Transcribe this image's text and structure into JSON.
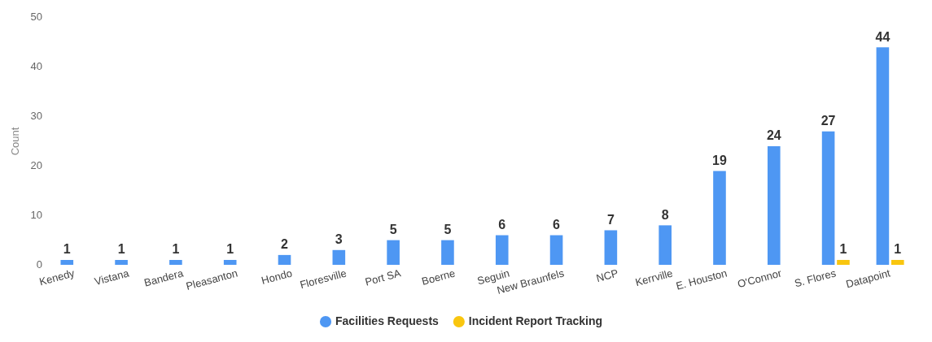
{
  "chart_data": {
    "type": "bar",
    "ylabel": "Count",
    "categories": [
      "Kenedy",
      "Vistana",
      "Bandera",
      "Pleasanton",
      "Hondo",
      "Floresville",
      "Port SA",
      "Boerne",
      "Seguin",
      "New Braunfels",
      "NCP",
      "Kerrville",
      "E. Houston",
      "O'Connor",
      "S. Flores",
      "Datapoint"
    ],
    "series": [
      {
        "name": "Facilities Requests",
        "color": "#4e97f3",
        "values": [
          1,
          1,
          1,
          1,
          2,
          3,
          5,
          5,
          6,
          6,
          7,
          8,
          19,
          24,
          27,
          44
        ]
      },
      {
        "name": "Incident Report Tracking",
        "color": "#f9c60f",
        "values": [
          null,
          null,
          null,
          null,
          null,
          null,
          null,
          null,
          null,
          null,
          null,
          null,
          null,
          null,
          1,
          1
        ]
      }
    ],
    "ylim": [
      0,
      50
    ],
    "yticks": [
      0,
      10,
      20,
      30,
      40,
      50
    ],
    "grid": false,
    "legend": "bottom",
    "data_labels": true
  }
}
